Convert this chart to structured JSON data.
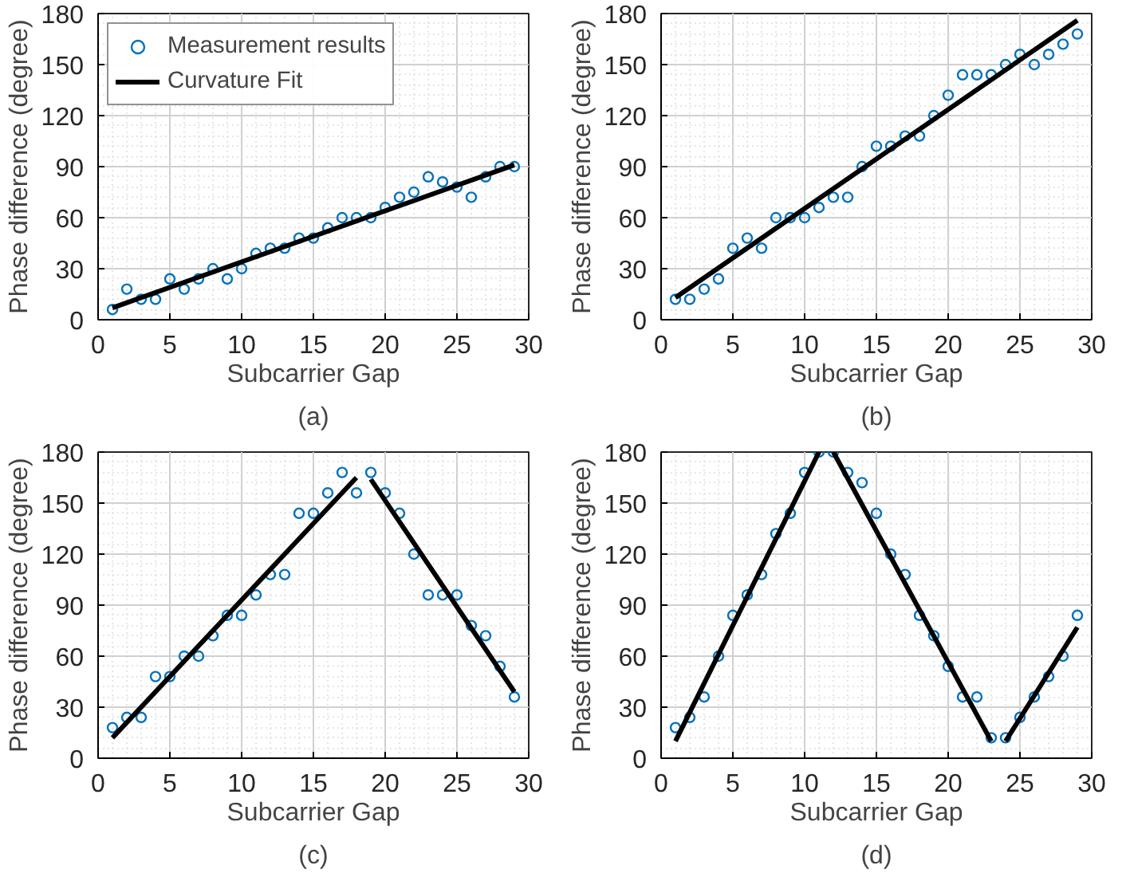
{
  "chart_data": [
    {
      "type": "scatter",
      "title": "(a)",
      "xlabel": "Subcarrier Gap",
      "ylabel": "Phase difference (degree)",
      "xlim": [
        0,
        30
      ],
      "ylim": [
        0,
        180
      ],
      "xticks": [
        0,
        5,
        10,
        15,
        20,
        25,
        30
      ],
      "yticks": [
        0,
        30,
        60,
        90,
        120,
        150,
        180
      ],
      "grid": true,
      "legend": "top left",
      "series": [
        {
          "name": "Measurement results",
          "marker": "circle",
          "color": "#0072bd",
          "x": [
            1,
            2,
            3,
            4,
            5,
            6,
            7,
            8,
            9,
            10,
            11,
            12,
            13,
            14,
            15,
            16,
            17,
            18,
            19,
            20,
            21,
            22,
            23,
            24,
            25,
            26,
            27,
            28,
            29
          ],
          "values": [
            6,
            18,
            12,
            12,
            24,
            18,
            24,
            30,
            24,
            30,
            39,
            42,
            42,
            48,
            48,
            54,
            60,
            60,
            60,
            66,
            72,
            75,
            84,
            81,
            78,
            72,
            84,
            90,
            90
          ]
        },
        {
          "name": "Curvature Fit",
          "type": "line",
          "color": "#000000",
          "x": [
            1,
            29
          ],
          "values": [
            7,
            91
          ]
        }
      ]
    },
    {
      "type": "scatter",
      "title": "(b)",
      "xlabel": "Subcarrier Gap",
      "ylabel": "Phase difference (degree)",
      "xlim": [
        0,
        30
      ],
      "ylim": [
        0,
        180
      ],
      "xticks": [
        0,
        5,
        10,
        15,
        20,
        25,
        30
      ],
      "yticks": [
        0,
        30,
        60,
        90,
        120,
        150,
        180
      ],
      "grid": true,
      "series": [
        {
          "marker": "circle",
          "color": "#0072bd",
          "x": [
            1,
            2,
            3,
            4,
            5,
            6,
            7,
            8,
            9,
            10,
            11,
            12,
            13,
            14,
            15,
            16,
            17,
            18,
            19,
            20,
            21,
            22,
            23,
            24,
            25,
            26,
            27,
            28,
            29
          ],
          "values": [
            12,
            12,
            18,
            24,
            42,
            48,
            42,
            60,
            60,
            60,
            66,
            72,
            72,
            90,
            102,
            102,
            108,
            108,
            120,
            132,
            144,
            144,
            144,
            150,
            156,
            150,
            156,
            162,
            168
          ]
        },
        {
          "type": "line",
          "color": "#000000",
          "x": [
            1,
            29
          ],
          "values": [
            13,
            176
          ]
        }
      ]
    },
    {
      "type": "scatter",
      "title": "(c)",
      "xlabel": "Subcarrier Gap",
      "ylabel": "Phase difference (degree)",
      "xlim": [
        0,
        30
      ],
      "ylim": [
        0,
        180
      ],
      "xticks": [
        0,
        5,
        10,
        15,
        20,
        25,
        30
      ],
      "yticks": [
        0,
        30,
        60,
        90,
        120,
        150,
        180
      ],
      "grid": true,
      "series": [
        {
          "marker": "circle",
          "color": "#0072bd",
          "x": [
            1,
            2,
            3,
            4,
            5,
            6,
            7,
            8,
            9,
            10,
            11,
            12,
            13,
            14,
            15,
            16,
            17,
            18,
            19,
            20,
            21,
            22,
            23,
            24,
            25,
            26,
            27,
            28,
            29
          ],
          "values": [
            18,
            24,
            24,
            48,
            48,
            60,
            60,
            72,
            84,
            84,
            96,
            108,
            108,
            144,
            144,
            156,
            168,
            156,
            168,
            156,
            144,
            120,
            96,
            96,
            96,
            78,
            72,
            54,
            36
          ]
        },
        {
          "type": "line",
          "color": "#000000",
          "x": [
            1,
            18
          ],
          "values": [
            12,
            165
          ]
        },
        {
          "type": "line",
          "color": "#000000",
          "x": [
            19,
            29
          ],
          "values": [
            164,
            39
          ]
        }
      ]
    },
    {
      "type": "scatter",
      "title": "(d)",
      "xlabel": "Subcarrier Gap",
      "ylabel": "Phase difference (degree)",
      "xlim": [
        0,
        30
      ],
      "ylim": [
        0,
        180
      ],
      "xticks": [
        0,
        5,
        10,
        15,
        20,
        25,
        30
      ],
      "yticks": [
        0,
        30,
        60,
        90,
        120,
        150,
        180
      ],
      "grid": true,
      "series": [
        {
          "marker": "circle",
          "color": "#0072bd",
          "x": [
            1,
            2,
            3,
            4,
            5,
            6,
            7,
            8,
            9,
            10,
            11,
            12,
            13,
            14,
            15,
            16,
            17,
            18,
            19,
            20,
            21,
            22,
            23,
            24,
            25,
            26,
            27,
            28,
            29
          ],
          "values": [
            18,
            24,
            36,
            60,
            84,
            96,
            108,
            132,
            144,
            168,
            180,
            180,
            168,
            162,
            144,
            120,
            108,
            84,
            72,
            54,
            36,
            36,
            12,
            12,
            24,
            36,
            48,
            60,
            84
          ]
        },
        {
          "type": "line",
          "color": "#000000",
          "x": [
            1,
            11
          ],
          "values": [
            10,
            180
          ]
        },
        {
          "type": "line",
          "color": "#000000",
          "x": [
            12,
            23
          ],
          "values": [
            180,
            10
          ]
        },
        {
          "type": "line",
          "color": "#000000",
          "x": [
            24,
            29
          ],
          "values": [
            10,
            77
          ]
        }
      ]
    }
  ]
}
